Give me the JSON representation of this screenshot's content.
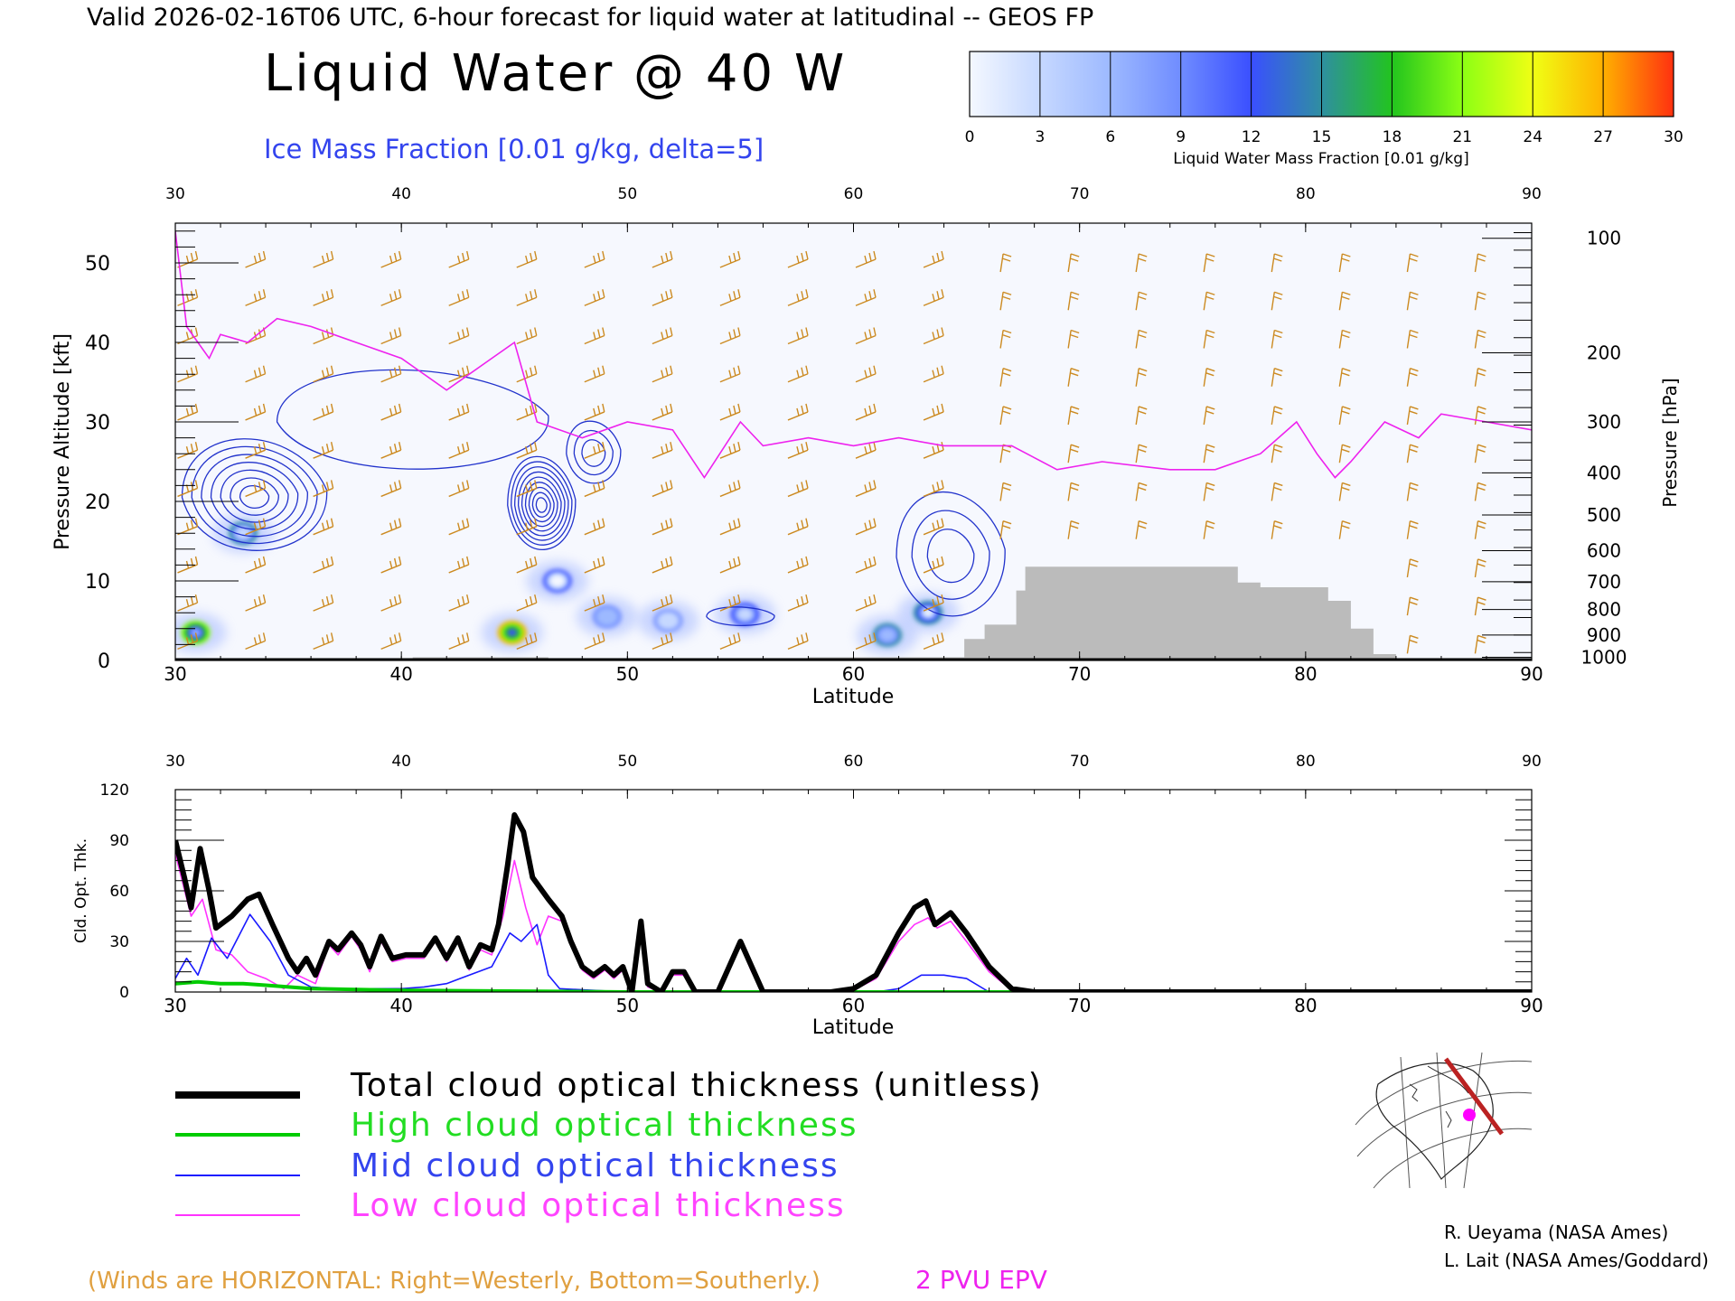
{
  "header": {
    "valid_line": "Valid 2026-02-16T06 UTC, 6-hour forecast for liquid water at latitudinal -- GEOS FP",
    "main_title": "Liquid Water @ 40 W",
    "ice_subtitle": "Ice Mass Fraction [0.01 g/kg, delta=5]"
  },
  "colorbar": {
    "ticks": [
      "0",
      "3",
      "6",
      "9",
      "12",
      "15",
      "18",
      "21",
      "24",
      "27",
      "30"
    ],
    "label": "Liquid Water Mass Fraction [0.01 g/kg]",
    "colors": [
      "#f4f8ff",
      "#c6d8ff",
      "#9db9ff",
      "#6f8cff",
      "#3a4fff",
      "#2f8fa0",
      "#22c41e",
      "#8cff14",
      "#f0ff14",
      "#ffb000",
      "#ff3010"
    ]
  },
  "colors": {
    "total": "#000000",
    "high": "#00cc00",
    "mid": "#1a1aff",
    "low": "#ff33ff",
    "winds": "#cc8a20",
    "terrain": "#bbbbbb",
    "ice": "#2233cc",
    "epv": "#ee22ee"
  },
  "chart_data": [
    {
      "type": "heatmap",
      "title": "Liquid Water @ 40 W",
      "xlabel": "Latitude",
      "ylabel": "Pressure Altitude [kft]",
      "y2label": "Pressure [hPa]",
      "xlim": [
        30,
        90
      ],
      "ylim": [
        0,
        55
      ],
      "x_ticks": [
        "30",
        "40",
        "50",
        "60",
        "70",
        "80",
        "90"
      ],
      "y_ticks": [
        "0",
        "10",
        "20",
        "30",
        "40",
        "50"
      ],
      "pressure_ticks": [
        "100",
        "200",
        "300",
        "400",
        "500",
        "600",
        "700",
        "800",
        "900",
        "1000"
      ],
      "pressure_tick_kft": [
        53.1,
        38.7,
        30.0,
        23.6,
        18.3,
        13.8,
        9.9,
        6.4,
        3.2,
        0.4
      ],
      "liquid_blobs": [
        {
          "lat": 30.9,
          "kft": 3.5,
          "value": 22
        },
        {
          "lat": 33.0,
          "kft": 16.0,
          "value": 14
        },
        {
          "lat": 44.9,
          "kft": 3.5,
          "value": 27
        },
        {
          "lat": 46.9,
          "kft": 10.0,
          "value": 11
        },
        {
          "lat": 49.1,
          "kft": 5.5,
          "value": 10
        },
        {
          "lat": 51.8,
          "kft": 5.0,
          "value": 8
        },
        {
          "lat": 55.2,
          "kft": 5.8,
          "value": 13
        },
        {
          "lat": 61.5,
          "kft": 3.2,
          "value": 15
        },
        {
          "lat": 63.3,
          "kft": 6.0,
          "value": 16
        }
      ],
      "epv_2pvu_kft": [
        [
          30,
          54
        ],
        [
          30.5,
          42
        ],
        [
          31.5,
          38
        ],
        [
          32,
          41
        ],
        [
          33.2,
          40
        ],
        [
          34.5,
          43
        ],
        [
          36,
          42
        ],
        [
          38,
          40
        ],
        [
          40,
          38
        ],
        [
          42,
          34
        ],
        [
          44,
          38
        ],
        [
          45,
          40
        ],
        [
          46,
          30
        ],
        [
          48,
          28
        ],
        [
          50,
          30
        ],
        [
          52,
          29
        ],
        [
          53.4,
          23
        ],
        [
          55,
          30
        ],
        [
          56,
          27
        ],
        [
          58,
          28
        ],
        [
          60,
          27
        ],
        [
          62,
          28
        ],
        [
          64,
          27
        ],
        [
          67,
          27
        ],
        [
          69,
          24
        ],
        [
          71,
          25
        ],
        [
          74,
          24
        ],
        [
          76,
          24
        ],
        [
          78,
          26
        ],
        [
          79.6,
          30
        ],
        [
          80.5,
          26
        ],
        [
          81.3,
          23
        ],
        [
          82,
          25
        ],
        [
          83.5,
          30
        ],
        [
          85,
          28
        ],
        [
          86,
          31
        ],
        [
          88,
          30
        ],
        [
          90,
          29
        ]
      ],
      "terrain_kft": [
        [
          30,
          0
        ],
        [
          40.5,
          0
        ],
        [
          40.5,
          0.4
        ],
        [
          46.5,
          0.4
        ],
        [
          46.5,
          0
        ],
        [
          58,
          0
        ],
        [
          58,
          0.4
        ],
        [
          63,
          0.4
        ],
        [
          64.9,
          0.4
        ],
        [
          64.9,
          2.7
        ],
        [
          65.8,
          2.7
        ],
        [
          65.8,
          4.5
        ],
        [
          67.2,
          4.5
        ],
        [
          67.2,
          8.8
        ],
        [
          67.6,
          8.8
        ],
        [
          67.6,
          11.8
        ],
        [
          77.0,
          11.8
        ],
        [
          77.0,
          9.8
        ],
        [
          78.0,
          9.8
        ],
        [
          78.0,
          9.2
        ],
        [
          81.0,
          9.2
        ],
        [
          81.0,
          7.5
        ],
        [
          82.0,
          7.5
        ],
        [
          82.0,
          4.0
        ],
        [
          83.0,
          4.0
        ],
        [
          83.0,
          0.8
        ],
        [
          84.0,
          0.8
        ],
        [
          84.0,
          0
        ],
        [
          90,
          0
        ]
      ],
      "ice_contours": [
        {
          "lat": 33.5,
          "kft": 20.5,
          "rx": 3.2,
          "ry": 9.0,
          "levels": 7
        },
        {
          "lat": 46.2,
          "kft": 19.5,
          "rx": 1.5,
          "ry": 7.5,
          "levels": 9
        },
        {
          "lat": 48.5,
          "kft": 26.0,
          "rx": 1.2,
          "ry": 5.0,
          "levels": 3
        },
        {
          "lat": 64.3,
          "kft": 13.0,
          "rx": 2.4,
          "ry": 10.0,
          "levels": 3
        },
        {
          "lat": 40.5,
          "kft": 30.0,
          "rx": 6.0,
          "ry": 8.0,
          "levels": 1
        },
        {
          "lat": 55.0,
          "kft": 5.5,
          "rx": 1.5,
          "ry": 1.5,
          "levels": 1
        }
      ]
    },
    {
      "type": "line",
      "xlabel": "Latitude",
      "ylabel": "Cld. Opt. Thk.",
      "xlim": [
        30,
        90
      ],
      "ylim": [
        0,
        120
      ],
      "x_ticks": [
        "30",
        "40",
        "50",
        "60",
        "70",
        "80",
        "90"
      ],
      "y_ticks": [
        "0",
        "30",
        "60",
        "90",
        "120"
      ],
      "series": [
        {
          "name": "Total cloud optical thickness (unitless)",
          "color_key": "total",
          "points": [
            [
              30,
              90
            ],
            [
              30.4,
              68
            ],
            [
              30.7,
              50
            ],
            [
              31.1,
              85
            ],
            [
              31.5,
              60
            ],
            [
              31.8,
              38
            ],
            [
              32.5,
              45
            ],
            [
              33.2,
              55
            ],
            [
              33.7,
              58
            ],
            [
              34.3,
              40
            ],
            [
              35,
              20
            ],
            [
              35.4,
              12
            ],
            [
              35.8,
              20
            ],
            [
              36.2,
              10
            ],
            [
              36.8,
              30
            ],
            [
              37.2,
              25
            ],
            [
              37.8,
              35
            ],
            [
              38.2,
              28
            ],
            [
              38.6,
              15
            ],
            [
              39.1,
              33
            ],
            [
              39.6,
              20
            ],
            [
              40.2,
              22
            ],
            [
              41,
              22
            ],
            [
              41.5,
              32
            ],
            [
              42,
              20
            ],
            [
              42.5,
              32
            ],
            [
              43,
              15
            ],
            [
              43.5,
              28
            ],
            [
              44,
              25
            ],
            [
              44.3,
              40
            ],
            [
              44.7,
              75
            ],
            [
              45,
              105
            ],
            [
              45.4,
              95
            ],
            [
              45.8,
              68
            ],
            [
              46.5,
              55
            ],
            [
              47.1,
              45
            ],
            [
              47.5,
              30
            ],
            [
              48,
              15
            ],
            [
              48.5,
              10
            ],
            [
              49,
              15
            ],
            [
              49.4,
              10
            ],
            [
              49.8,
              15
            ],
            [
              50.2,
              0
            ],
            [
              50.6,
              42
            ],
            [
              50.9,
              5
            ],
            [
              51.5,
              0
            ],
            [
              52,
              12
            ],
            [
              52.5,
              12
            ],
            [
              53,
              0
            ],
            [
              54,
              0
            ],
            [
              55,
              30
            ],
            [
              55.5,
              15
            ],
            [
              56,
              0
            ],
            [
              58,
              0
            ],
            [
              59,
              0
            ],
            [
              60,
              2
            ],
            [
              61,
              10
            ],
            [
              62,
              35
            ],
            [
              62.7,
              50
            ],
            [
              63.2,
              54
            ],
            [
              63.6,
              40
            ],
            [
              64.3,
              47
            ],
            [
              65,
              35
            ],
            [
              66,
              15
            ],
            [
              67,
              2
            ],
            [
              68,
              0
            ],
            [
              90,
              0
            ]
          ]
        },
        {
          "name": "High cloud optical thickness",
          "color_key": "high",
          "points": [
            [
              30,
              5
            ],
            [
              31,
              6
            ],
            [
              32,
              5
            ],
            [
              33,
              5
            ],
            [
              34,
              4
            ],
            [
              36,
              2
            ],
            [
              40,
              1
            ],
            [
              50,
              0
            ],
            [
              90,
              0
            ]
          ]
        },
        {
          "name": "Mid cloud optical thickness",
          "color_key": "mid",
          "points": [
            [
              30,
              8
            ],
            [
              30.5,
              20
            ],
            [
              31,
              10
            ],
            [
              31.6,
              32
            ],
            [
              32.3,
              20
            ],
            [
              33.3,
              46
            ],
            [
              34.2,
              30
            ],
            [
              35,
              10
            ],
            [
              36,
              3
            ],
            [
              37,
              2
            ],
            [
              40,
              2
            ],
            [
              41,
              3
            ],
            [
              42,
              5
            ],
            [
              44,
              15
            ],
            [
              44.8,
              35
            ],
            [
              45.3,
              30
            ],
            [
              46,
              40
            ],
            [
              46.5,
              10
            ],
            [
              47,
              2
            ],
            [
              50,
              0
            ],
            [
              61,
              0
            ],
            [
              62,
              2
            ],
            [
              63,
              10
            ],
            [
              64,
              10
            ],
            [
              65,
              8
            ],
            [
              66,
              0
            ],
            [
              90,
              0
            ]
          ]
        },
        {
          "name": "Low cloud optical thickness",
          "color_key": "low",
          "points": [
            [
              30,
              82
            ],
            [
              30.7,
              45
            ],
            [
              31.2,
              55
            ],
            [
              31.8,
              25
            ],
            [
              32.5,
              22
            ],
            [
              33.2,
              12
            ],
            [
              34,
              8
            ],
            [
              34.8,
              2
            ],
            [
              35.4,
              10
            ],
            [
              36.2,
              5
            ],
            [
              36.8,
              28
            ],
            [
              37.2,
              22
            ],
            [
              37.8,
              33
            ],
            [
              38.2,
              25
            ],
            [
              38.6,
              12
            ],
            [
              39.1,
              30
            ],
            [
              39.6,
              18
            ],
            [
              40.2,
              20
            ],
            [
              41,
              20
            ],
            [
              41.5,
              30
            ],
            [
              42,
              18
            ],
            [
              42.5,
              30
            ],
            [
              43,
              13
            ],
            [
              43.5,
              25
            ],
            [
              44,
              22
            ],
            [
              44.5,
              45
            ],
            [
              45,
              78
            ],
            [
              45.5,
              50
            ],
            [
              46,
              28
            ],
            [
              46.5,
              45
            ],
            [
              47.1,
              42
            ],
            [
              47.5,
              28
            ],
            [
              48,
              13
            ],
            [
              48.5,
              8
            ],
            [
              49,
              13
            ],
            [
              49.4,
              8
            ],
            [
              49.8,
              13
            ],
            [
              50.2,
              0
            ],
            [
              50.6,
              40
            ],
            [
              50.9,
              3
            ],
            [
              51.5,
              0
            ],
            [
              52,
              10
            ],
            [
              52.5,
              10
            ],
            [
              53,
              0
            ],
            [
              54,
              0
            ],
            [
              55,
              28
            ],
            [
              55.5,
              12
            ],
            [
              56,
              0
            ],
            [
              59,
              0
            ],
            [
              60,
              1
            ],
            [
              61,
              8
            ],
            [
              62,
              30
            ],
            [
              62.7,
              40
            ],
            [
              63.3,
              44
            ],
            [
              63.7,
              38
            ],
            [
              64.3,
              42
            ],
            [
              65,
              30
            ],
            [
              66,
              12
            ],
            [
              67,
              1
            ],
            [
              68,
              0
            ],
            [
              90,
              0
            ]
          ]
        }
      ]
    }
  ],
  "legend": [
    {
      "label": "Total cloud optical thickness (unitless)",
      "color_key": "total"
    },
    {
      "label": "High cloud optical thickness",
      "color_key": "high"
    },
    {
      "label": "Mid cloud optical thickness",
      "color_key": "mid"
    },
    {
      "label": "Low cloud optical thickness",
      "color_key": "low"
    }
  ],
  "footer": {
    "winds_note": "(Winds are HORIZONTAL: Right=Westerly, Bottom=Southerly.)",
    "epv_label": "2 PVU EPV",
    "credit1": "R. Ueyama (NASA Ames)",
    "credit2": "L. Lait (NASA Ames/Goddard)"
  }
}
